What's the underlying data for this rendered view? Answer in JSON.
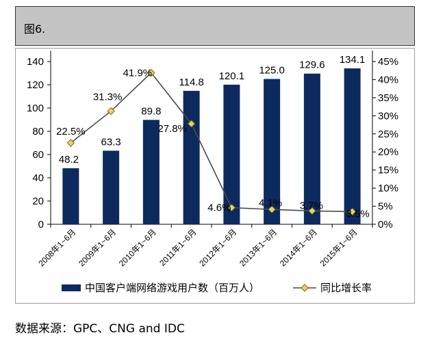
{
  "header": {
    "title": "图6."
  },
  "source": "数据来源：GPC、CNG and IDC",
  "chart_data": {
    "type": "bar",
    "categories": [
      "2008年1~6月",
      "2009年1~6月",
      "2010年1~6月",
      "2011年1~6月",
      "2012年1~6月",
      "2013年1~6月",
      "2014年1~6月",
      "2015年1~6月"
    ],
    "series": [
      {
        "name": "中国客户端网络游戏用户数（百万人）",
        "type": "bar",
        "axis": "left",
        "color": "#0d2a5e",
        "values": [
          48.2,
          63.3,
          89.8,
          114.8,
          120.1,
          125.0,
          129.6,
          134.1
        ],
        "labels": [
          "48.2",
          "63.3",
          "89.8",
          "114.8",
          "120.1",
          "125.0",
          "129.6",
          "134.1"
        ]
      },
      {
        "name": "同比增长率",
        "type": "line",
        "axis": "right",
        "color": "#4a4a4a",
        "marker_color": "#e8d46a",
        "values": [
          22.5,
          31.3,
          41.9,
          27.8,
          4.6,
          4.1,
          3.7,
          3.5
        ],
        "labels": [
          "22.5%",
          "31.3%",
          "41.9%",
          "27.8%",
          "4.6%",
          "4.1%",
          "3.7%",
          "3.5%"
        ]
      }
    ],
    "y_left": {
      "min": 0,
      "max": 140,
      "ticks": [
        "0",
        "20",
        "40",
        "60",
        "80",
        "100",
        "120",
        "140"
      ]
    },
    "y_right": {
      "min": 0,
      "max": 45,
      "ticks": [
        "0%",
        "5%",
        "10%",
        "15%",
        "20%",
        "25%",
        "30%",
        "35%",
        "40%",
        "45%"
      ]
    },
    "grid": false,
    "legend_position": "bottom"
  }
}
